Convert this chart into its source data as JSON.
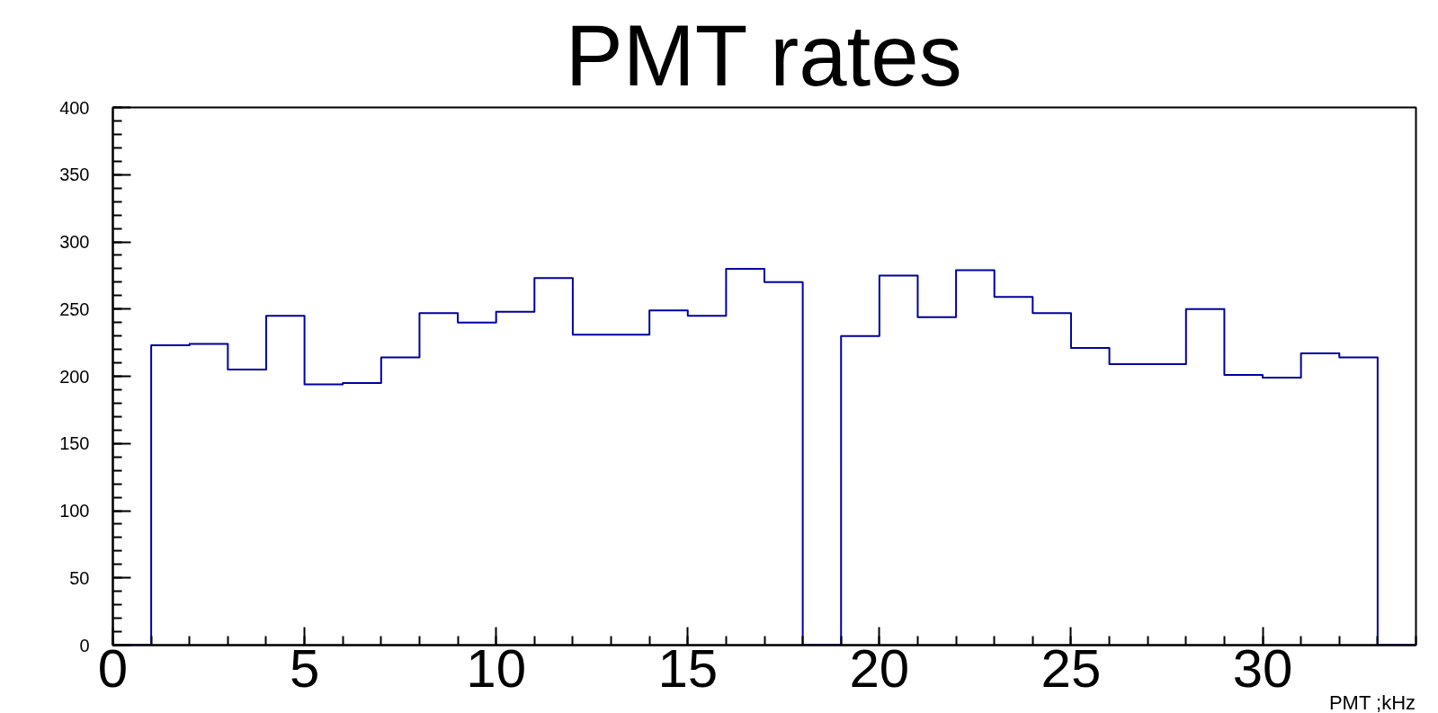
{
  "chart_data": {
    "type": "histogram",
    "title": "PMT rates",
    "xlabel": "PMT ;kHz",
    "color": "#0000a0",
    "bins": [
      0,
      1,
      2,
      3,
      4,
      5,
      6,
      7,
      8,
      9,
      10,
      11,
      12,
      13,
      14,
      15,
      16,
      17,
      18,
      19,
      20,
      21,
      22,
      23,
      24,
      25,
      26,
      27,
      28,
      29,
      30,
      31,
      32,
      33,
      34
    ],
    "values": [
      0,
      223,
      224,
      205,
      245,
      194,
      195,
      214,
      247,
      240,
      248,
      273,
      231,
      231,
      249,
      245,
      280,
      270,
      0,
      230,
      275,
      244,
      279,
      259,
      247,
      221,
      209,
      209,
      250,
      201,
      199,
      217,
      214,
      0
    ],
    "xlim": [
      0,
      34
    ],
    "xticks": [
      0,
      5,
      10,
      15,
      20,
      25,
      30
    ],
    "ylim": [
      0,
      400
    ],
    "yticks": [
      0,
      50,
      100,
      150,
      200,
      250,
      300,
      350,
      400
    ],
    "grid": false
  }
}
